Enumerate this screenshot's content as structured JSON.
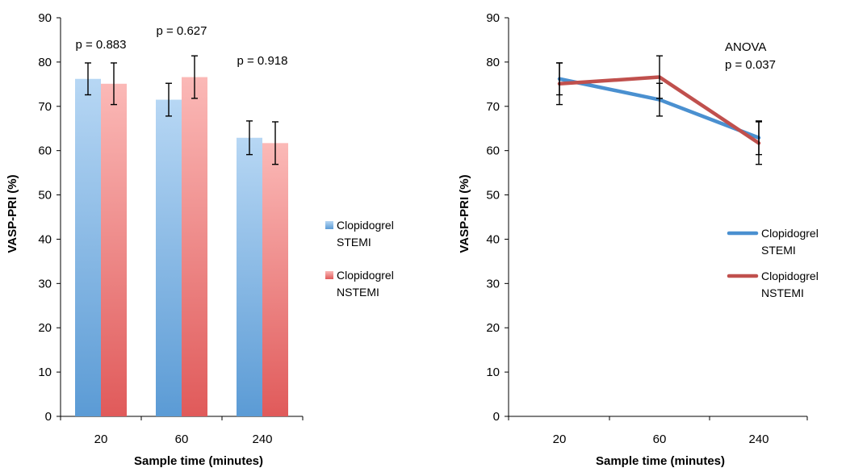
{
  "chart_data": [
    {
      "type": "bar",
      "categories": [
        "20",
        "60",
        "240"
      ],
      "series": [
        {
          "name": "Clopidogrel STEMI",
          "legend_lines": [
            "Clopidogrel",
            "STEMI"
          ],
          "values": [
            76.2,
            71.5,
            62.9
          ],
          "errors": [
            3.6,
            3.7,
            3.8
          ],
          "color": "#5b9bd5",
          "color_light": "#b7d7f4"
        },
        {
          "name": "Clopidogrel NSTEMI",
          "legend_lines": [
            "Clopidogrel",
            "NSTEMI"
          ],
          "values": [
            75.1,
            76.6,
            61.7
          ],
          "errors": [
            4.7,
            4.8,
            4.8
          ],
          "color": "#e05a5a",
          "color_light": "#fbb9b7"
        }
      ],
      "annotations": [
        "p = 0.883",
        "p = 0.627",
        "p = 0.918"
      ],
      "ylabel": "VASP-PRI (%)",
      "xlabel": "Sample time (minutes)",
      "ylim": [
        0,
        90
      ],
      "yticks": [
        0,
        10,
        20,
        30,
        40,
        50,
        60,
        70,
        80,
        90
      ],
      "grid": false,
      "legend_position": "right"
    },
    {
      "type": "line",
      "categories": [
        "20",
        "60",
        "240"
      ],
      "series": [
        {
          "name": "Clopidogrel STEMI",
          "legend_lines": [
            "Clopidogrel",
            "STEMI"
          ],
          "values": [
            76.2,
            71.5,
            62.9
          ],
          "errors": [
            3.6,
            3.7,
            3.8
          ],
          "color": "#4a90d0"
        },
        {
          "name": "Clopidogrel NSTEMI",
          "legend_lines": [
            "Clopidogrel",
            "NSTEMI"
          ],
          "values": [
            75.1,
            76.6,
            61.7
          ],
          "errors": [
            4.7,
            4.8,
            4.8
          ],
          "color": "#c0504d"
        }
      ],
      "annotation_lines": [
        "ANOVA",
        "p = 0.037"
      ],
      "ylabel": "VASP-PRI (%)",
      "xlabel": "Sample time (minutes)",
      "ylim": [
        0,
        90
      ],
      "yticks": [
        0,
        10,
        20,
        30,
        40,
        50,
        60,
        70,
        80,
        90
      ],
      "grid": false,
      "legend_position": "right"
    }
  ]
}
